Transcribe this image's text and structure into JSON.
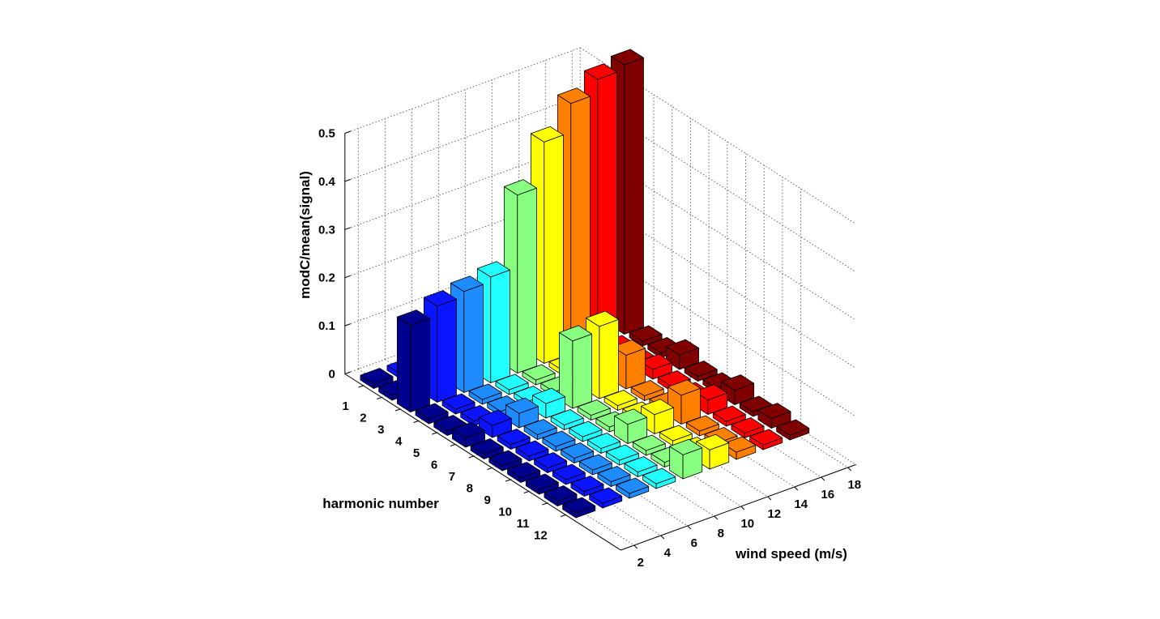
{
  "chart_data": {
    "type": "bar3",
    "xlabel": "wind speed (m/s)",
    "ylabel": "harmonic number",
    "zlabel": "modC/mean(signal)",
    "harmonics": [
      "1",
      "2",
      "3",
      "4",
      "5",
      "6",
      "7",
      "8",
      "9",
      "10",
      "11",
      "12"
    ],
    "wind_speeds": [
      "2",
      "4",
      "6",
      "8",
      "10",
      "12",
      "14",
      "16",
      "18"
    ],
    "zticks": [
      "0",
      "0.1",
      "0.2",
      "0.3",
      "0.4",
      "0.5"
    ],
    "zlim": [
      0,
      0.5
    ],
    "grid": true,
    "colors": [
      "#00008f",
      "#0a14ff",
      "#1e8cff",
      "#22ffff",
      "#88ff80",
      "#ffff00",
      "#ff7f00",
      "#ff0000",
      "#800000"
    ],
    "values": [
      [
        0.01,
        0.01,
        0.01,
        0.01,
        0.01,
        0.01,
        0.01,
        0.01,
        0.01
      ],
      [
        0.01,
        0.01,
        0.01,
        0.01,
        0.01,
        0.01,
        0.01,
        0.01,
        0.01
      ],
      [
        0.18,
        0.2,
        0.21,
        0.22,
        0.37,
        0.46,
        0.52,
        0.55,
        0.56
      ],
      [
        0.01,
        0.01,
        0.01,
        0.01,
        0.01,
        0.01,
        0.01,
        0.01,
        0.01
      ],
      [
        0.01,
        0.01,
        0.01,
        0.01,
        0.01,
        0.01,
        0.01,
        0.01,
        0.01
      ],
      [
        0.02,
        0.025,
        0.03,
        0.03,
        0.14,
        0.15,
        0.07,
        0.02,
        0.03
      ],
      [
        0.01,
        0.01,
        0.01,
        0.01,
        0.01,
        0.01,
        0.01,
        0.01,
        0.01
      ],
      [
        0.01,
        0.01,
        0.01,
        0.01,
        0.01,
        0.01,
        0.01,
        0.01,
        0.01
      ],
      [
        0.01,
        0.01,
        0.01,
        0.01,
        0.04,
        0.04,
        0.06,
        0.03,
        0.03
      ],
      [
        0.01,
        0.01,
        0.01,
        0.01,
        0.01,
        0.01,
        0.01,
        0.01,
        0.01
      ],
      [
        0.01,
        0.01,
        0.01,
        0.01,
        0.01,
        0.01,
        0.01,
        0.01,
        0.02
      ],
      [
        0.01,
        0.01,
        0.01,
        0.01,
        0.05,
        0.04,
        0.015,
        0.01,
        0.01
      ]
    ]
  }
}
